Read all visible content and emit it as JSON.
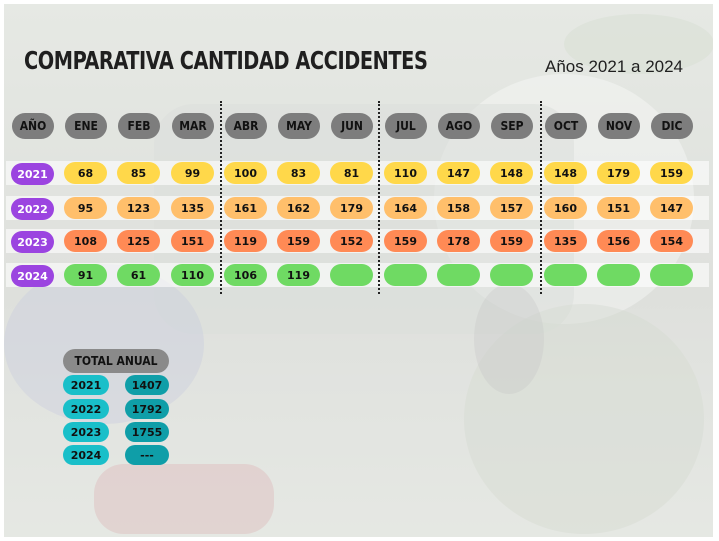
{
  "title": "COMPARATIVA CANTIDAD ACCIDENTES",
  "subtitle": "Años 2021 a 2024",
  "chart_data": {
    "type": "table",
    "title": "COMPARATIVA CANTIDAD ACCIDENTES",
    "subtitle": "Años 2021 a 2024",
    "year_header": "AÑO",
    "categories": [
      "ENE",
      "FEB",
      "MAR",
      "ABR",
      "MAY",
      "JUN",
      "JUL",
      "AGO",
      "SEP",
      "OCT",
      "NOV",
      "DIC"
    ],
    "series": [
      {
        "name": "2021",
        "values": [
          "68",
          "85",
          "99",
          "100",
          "83",
          "81",
          "110",
          "147",
          "148",
          "148",
          "179",
          "159"
        ]
      },
      {
        "name": "2022",
        "values": [
          "95",
          "123",
          "135",
          "161",
          "162",
          "179",
          "164",
          "158",
          "157",
          "160",
          "151",
          "147"
        ]
      },
      {
        "name": "2023",
        "values": [
          "108",
          "125",
          "151",
          "119",
          "159",
          "152",
          "159",
          "178",
          "159",
          "135",
          "156",
          "154"
        ]
      },
      {
        "name": "2024",
        "values": [
          "91",
          "61",
          "110",
          "106",
          "119",
          "",
          "",
          "",
          "",
          "",
          "",
          ""
        ]
      }
    ],
    "row_colors": {
      "year": "#9b44e0",
      "2021": "#ffd84a",
      "2022": "#ffbf6b",
      "2023": "#ff8a55",
      "2024": "#6fda63"
    },
    "totals": {
      "header": "TOTAL ANUAL",
      "rows": [
        {
          "year": "2021",
          "value": "1407"
        },
        {
          "year": "2022",
          "value": "1792"
        },
        {
          "year": "2023",
          "value": "1755"
        },
        {
          "year": "2024",
          "value": "---"
        }
      ]
    }
  }
}
